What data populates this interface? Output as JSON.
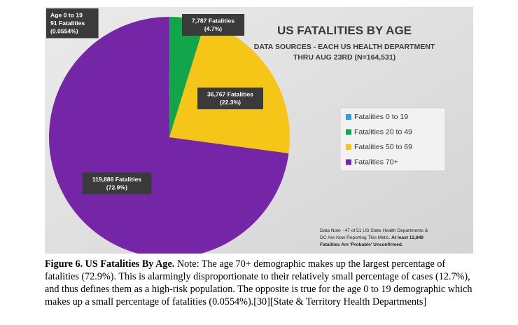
{
  "chart_data": {
    "type": "pie",
    "title": "US FATALITIES BY AGE",
    "subtitle_line1": "DATA SOURCES - EACH US HEALTH DEPARTMENT",
    "subtitle_line2": "THRU AUG 23RD (N=164,531)",
    "slices": [
      {
        "legend": "Fatalities 0 to 19",
        "value": 91,
        "percent": 0.0554,
        "color": "#2e9fd8",
        "label_lines": [
          "Age 0 to 19",
          "91 Fatalities",
          "(0.0554%)"
        ]
      },
      {
        "legend": "Fatalities 20 to 49",
        "value": 7787,
        "percent": 4.7,
        "color": "#12a54a",
        "label_lines": [
          "7,787 Fatalities",
          "(4.7%)"
        ]
      },
      {
        "legend": "Fatalities 50 to 69",
        "value": 36767,
        "percent": 22.3,
        "color": "#f5c518",
        "label_lines": [
          "36,767 Fatalities",
          "(22.3%)"
        ]
      },
      {
        "legend": "Fatalities 70+",
        "value": 119886,
        "percent": 72.9,
        "color": "#7426a6",
        "label_lines": [
          "119,886 Fatalities",
          "(72.9%)"
        ]
      }
    ],
    "legend_position": "right",
    "note_line1": "Data Note - 47 of 51 US State Health Departments &",
    "note_line2_plain": "DC Are Now Reporting This Metic.",
    "note_line2_bold": "At least 12,848",
    "note_line3": "Fatalities Are 'Probable' Unconfirmed."
  },
  "caption": {
    "label": "Figure 6. US Fatalities By Age.",
    "text": " Note: The age 70+ demographic makes up the largest percentage of fatalities (72.9%). This is alarmingly disproportionate to their relatively small percentage of cases (12.7%), and thus defines them as a high-risk population. The opposite is true for the age 0 to 19 demographic which makes up a small percentage of fatalities (0.0554%).[30][State & Territory Health Departments]"
  }
}
